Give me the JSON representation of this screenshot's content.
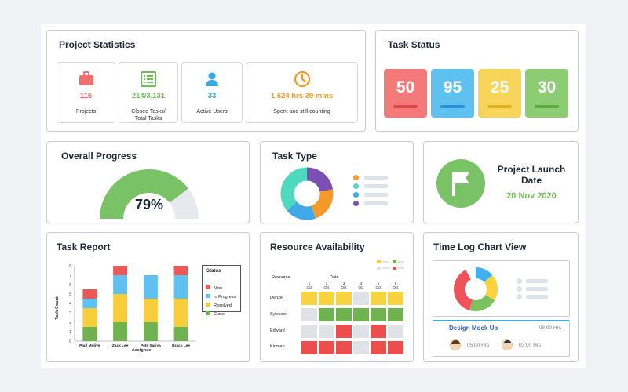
{
  "project_statistics": {
    "title": "Project Statistics",
    "stats": [
      {
        "value": "115",
        "label": "Projects",
        "color": "#ef6060",
        "icon": "briefcase-icon"
      },
      {
        "value": "214/3,131",
        "label": "Closed Tasks/\nTotal Tasks",
        "color": "#6fbf55",
        "icon": "list-icon"
      },
      {
        "value": "33",
        "label": "Active Users",
        "color": "#3aa9e0",
        "icon": "user-icon"
      },
      {
        "value": "1,624 hrs 39 mins",
        "label": "Spent and still counting",
        "color": "#f29a22",
        "icon": "clock-icon"
      }
    ]
  },
  "task_status": {
    "title": "Task Status",
    "tiles": [
      {
        "value": "50",
        "color": "#f47a7a",
        "bar": "#d84a4a"
      },
      {
        "value": "95",
        "color": "#5ec1f0",
        "bar": "#2e8fd6"
      },
      {
        "value": "25",
        "color": "#f7d55a",
        "bar": "#e0b020"
      },
      {
        "value": "30",
        "color": "#8ccc72",
        "bar": "#5ea843"
      }
    ]
  },
  "overall_progress": {
    "title": "Overall Progress",
    "percent": 79,
    "label": "79%"
  },
  "task_type": {
    "title": "Task Type"
  },
  "project_launch": {
    "title": "Project Launch Date",
    "date": "20 Nov 2020"
  },
  "task_report": {
    "title": "Task Report",
    "y_axis_label": "Task Count",
    "x_axis_label": "Assignee",
    "legend_title": "Status",
    "chart_data": {
      "type": "bar",
      "title": "Task Report",
      "xlabel": "Assignee",
      "ylabel": "Task Count",
      "ylim": [
        0,
        8
      ],
      "y_ticks": [
        "0",
        "1",
        "2",
        "3",
        "4",
        "5",
        "6",
        "7",
        "8"
      ],
      "categories": [
        "Paul Molive",
        "Zack Lee",
        "Pete Sariya",
        "Brack Lee"
      ],
      "series": [
        {
          "name": "Close",
          "color": "#6fb24f",
          "values": [
            1.5,
            2,
            2,
            1.5
          ]
        },
        {
          "name": "Resolved",
          "color": "#f7cd3c",
          "values": [
            2,
            3,
            2.5,
            3
          ]
        },
        {
          "name": "In Progress",
          "color": "#5ec1f0",
          "values": [
            1,
            2,
            2.5,
            2.5
          ]
        },
        {
          "name": "New",
          "color": "#ef5656",
          "values": [
            1,
            1,
            0,
            1
          ]
        }
      ],
      "legend": [
        "New",
        "In Progress",
        "Resolved",
        "Close"
      ]
    }
  },
  "resource_availability": {
    "title": "Resource Availability",
    "resource_label": "Resource",
    "date_label": "Date",
    "days": [
      {
        "n": "1",
        "m": "Oct"
      },
      {
        "n": "2",
        "m": "Oct"
      },
      {
        "n": "3",
        "m": "Oct"
      },
      {
        "n": "4",
        "m": "Oct"
      },
      {
        "n": "5",
        "m": "Oct"
      },
      {
        "n": "6",
        "m": "Oct"
      }
    ],
    "rows": [
      {
        "name": "Denzel",
        "cells": [
          "y",
          "y",
          "y",
          "g",
          "y",
          "y"
        ]
      },
      {
        "name": "Sylvester",
        "cells": [
          "g",
          "x",
          "x",
          "x",
          "x",
          "x"
        ]
      },
      {
        "name": "Edward",
        "cells": [
          "g",
          "g",
          "r",
          "g",
          "r",
          "g"
        ]
      },
      {
        "name": "Kidman",
        "cells": [
          "r",
          "r",
          "r",
          "g",
          "r",
          "r"
        ]
      }
    ],
    "colors": {
      "y": "#f7d340",
      "x": "#6fb24f",
      "g": "#dfe3e8",
      "r": "#ec4d4d"
    }
  },
  "time_log": {
    "title": "Time Log Chart View",
    "task": "Design Mock Up",
    "task_hours": "08:00 Hrs",
    "person1_hours": "05:00 Hrs",
    "person2_hours": "03:00 Hrs"
  }
}
